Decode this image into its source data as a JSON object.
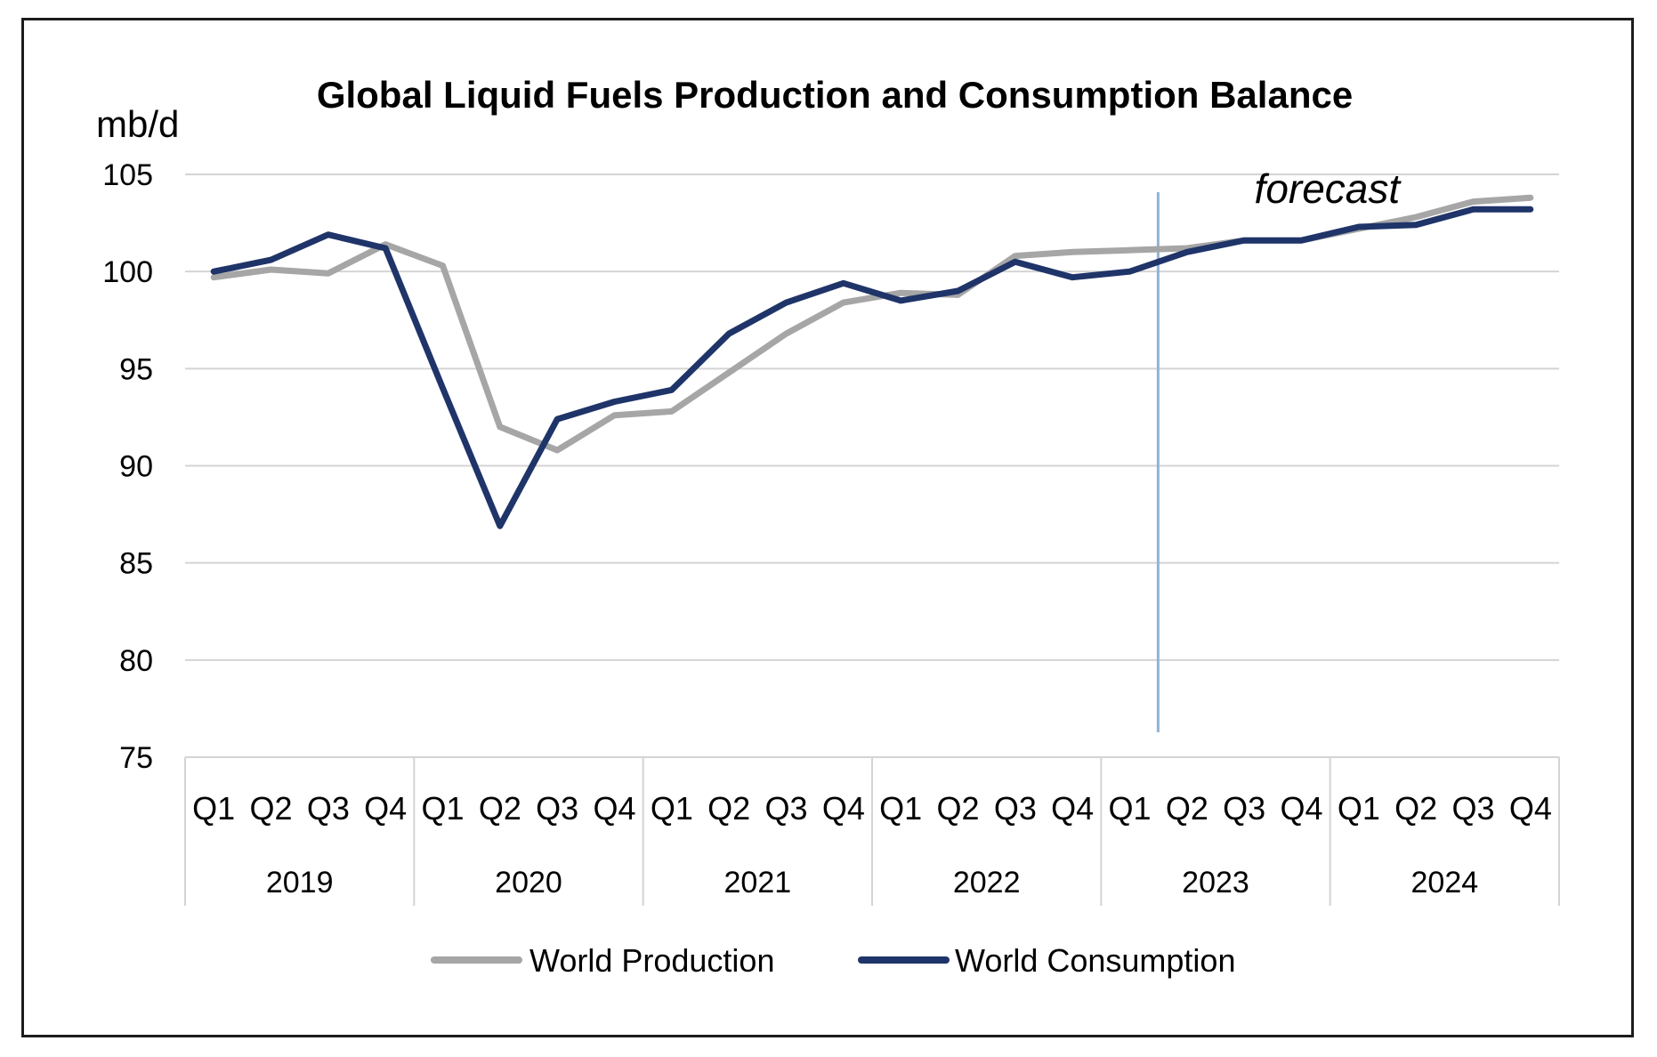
{
  "chart_data": {
    "type": "line",
    "title": "Global Liquid Fuels Production and Consumption Balance",
    "ylabel": "mb/d",
    "xlabel": "",
    "ylim": [
      75,
      105
    ],
    "yticks": [
      75,
      80,
      85,
      90,
      95,
      100,
      105
    ],
    "grid": true,
    "years": [
      "2019",
      "2020",
      "2021",
      "2022",
      "2023",
      "2024"
    ],
    "quarters": [
      "Q1",
      "Q2",
      "Q3",
      "Q4"
    ],
    "categories": [
      "Q1",
      "Q2",
      "Q3",
      "Q4",
      "Q1",
      "Q2",
      "Q3",
      "Q4",
      "Q1",
      "Q2",
      "Q3",
      "Q4",
      "Q1",
      "Q2",
      "Q3",
      "Q4",
      "Q1",
      "Q2",
      "Q3",
      "Q4",
      "Q1",
      "Q2",
      "Q3",
      "Q4"
    ],
    "series": [
      {
        "name": "World Production",
        "color": "#a6a6a6",
        "values": [
          99.7,
          100.1,
          99.9,
          101.4,
          100.3,
          92.0,
          90.8,
          92.6,
          92.8,
          94.8,
          96.8,
          98.4,
          98.9,
          98.8,
          100.8,
          101.0,
          101.1,
          101.2,
          101.6,
          101.6,
          102.2,
          102.8,
          103.6,
          103.8
        ]
      },
      {
        "name": "World Consumption",
        "color": "#1f3469",
        "values": [
          100.0,
          100.6,
          101.9,
          101.2,
          94.0,
          86.9,
          92.4,
          93.3,
          93.9,
          96.8,
          98.4,
          99.4,
          98.5,
          99.0,
          100.5,
          99.7,
          100.0,
          101.0,
          101.6,
          101.6,
          102.3,
          102.4,
          103.2,
          103.2
        ]
      }
    ],
    "forecast_label": "forecast",
    "forecast_start_index": 17,
    "legend_position": "bottom"
  }
}
